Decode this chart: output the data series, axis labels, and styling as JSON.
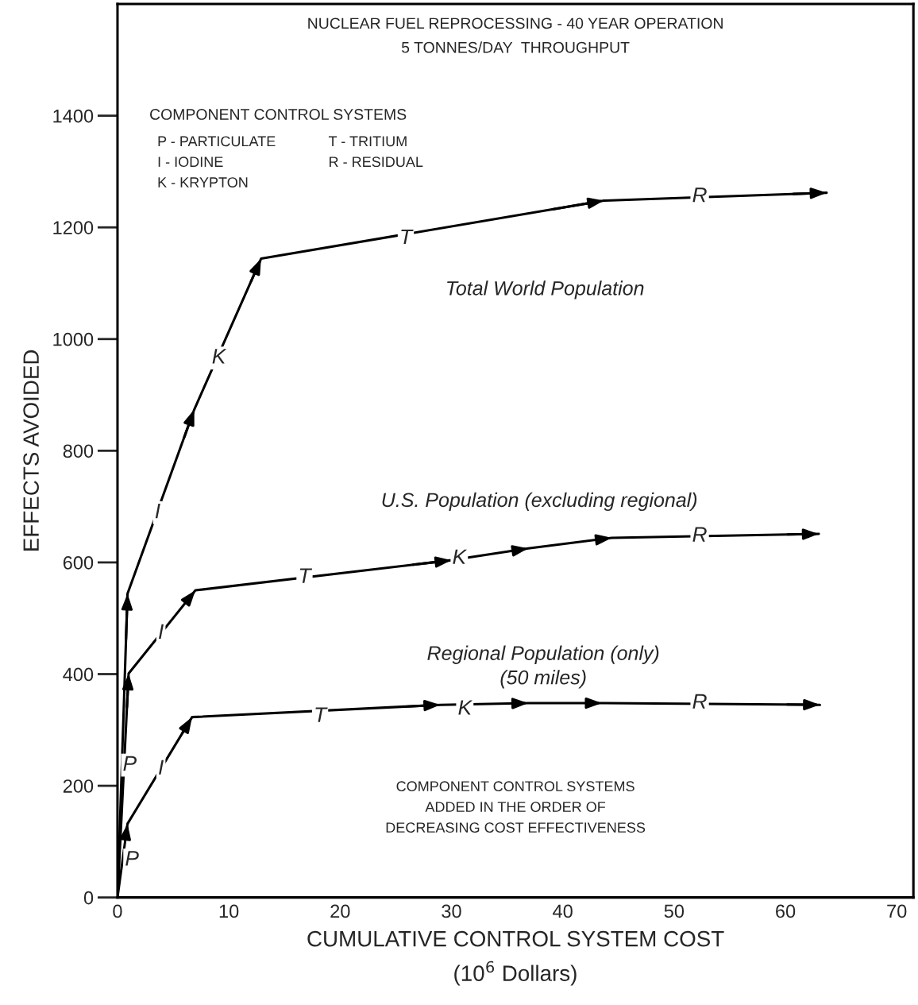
{
  "chart_data": {
    "type": "line",
    "title": "NUCLEAR FUEL REPROCESSING - 40 YEAR OPERATION",
    "subtitle": "5 TONNES/DAY  THROUGHPUT",
    "xlabel": "CUMULATIVE CONTROL SYSTEM COST\n(10$^{6}$ Dollars)",
    "ylabel": "EFFECTS AVOIDED",
    "series": [
      {
        "name": "Total World Population",
        "color": "#000000",
        "x": [
          0,
          0.9,
          6.9,
          12.9,
          43.7,
          63.7
        ],
        "values": [
          0,
          544,
          874,
          1144,
          1248,
          1262
        ]
      },
      {
        "name": "U.S. Population (excluding regional)",
        "color": "#000000",
        "x": [
          0,
          1.0,
          7.0,
          30.0,
          36.9,
          44.4,
          63.0
        ],
        "values": [
          0,
          401,
          550,
          604,
          625,
          644,
          651
        ]
      },
      {
        "name": "Regional Population (only)\n(50 miles)",
        "color": "#000000",
        "x": [
          0,
          0.9,
          6.7,
          29.0,
          36.9,
          43.5,
          63.1
        ],
        "values": [
          0,
          132,
          323,
          345,
          348,
          348,
          345
        ]
      }
    ],
    "xlim": [
      0,
      71.5
    ],
    "ylim": [
      0,
      1600
    ],
    "xticks": [
      0,
      10,
      20,
      30,
      40,
      50,
      60,
      70
    ],
    "yticks": [
      0,
      200,
      400,
      600,
      800,
      1000,
      1200,
      1400
    ],
    "grid": false,
    "legend": false,
    "marker": "none",
    "line_style": "solid",
    "annotations": [
      "COMPONENT CONTROL SYSTEMS",
      "P - PARTICULATE",
      "I - IODINE",
      "K - KRYPTON",
      "T - TRITIUM",
      "R - RESIDUAL",
      "COMPONENT CONTROL SYSTEMS\nADDED IN THE ORDER OF\nDECREASING COST EFFECTIVENESS",
      {
        "text": "P",
        "x": 1.1,
        "y": 237
      },
      {
        "text": "P",
        "x": 1.3,
        "y": 67
      },
      {
        "text": "I",
        "x": 3.6,
        "y": 689
      },
      {
        "text": "K",
        "x": 9.1,
        "y": 966
      },
      {
        "text": "T",
        "x": 25.9,
        "y": 1180
      },
      {
        "text": "R",
        "x": 52.3,
        "y": 1255
      },
      {
        "text": "I",
        "x": 3.9,
        "y": 473
      },
      {
        "text": "T",
        "x": 16.8,
        "y": 573
      },
      {
        "text": "K",
        "x": 30.7,
        "y": 607
      },
      {
        "text": "R",
        "x": 52.3,
        "y": 647
      },
      {
        "text": "I",
        "x": 3.9,
        "y": 230
      },
      {
        "text": "T",
        "x": 18.2,
        "y": 324
      },
      {
        "text": "K",
        "x": 31.2,
        "y": 337
      },
      {
        "text": "R",
        "x": 52.3,
        "y": 348
      }
    ]
  }
}
